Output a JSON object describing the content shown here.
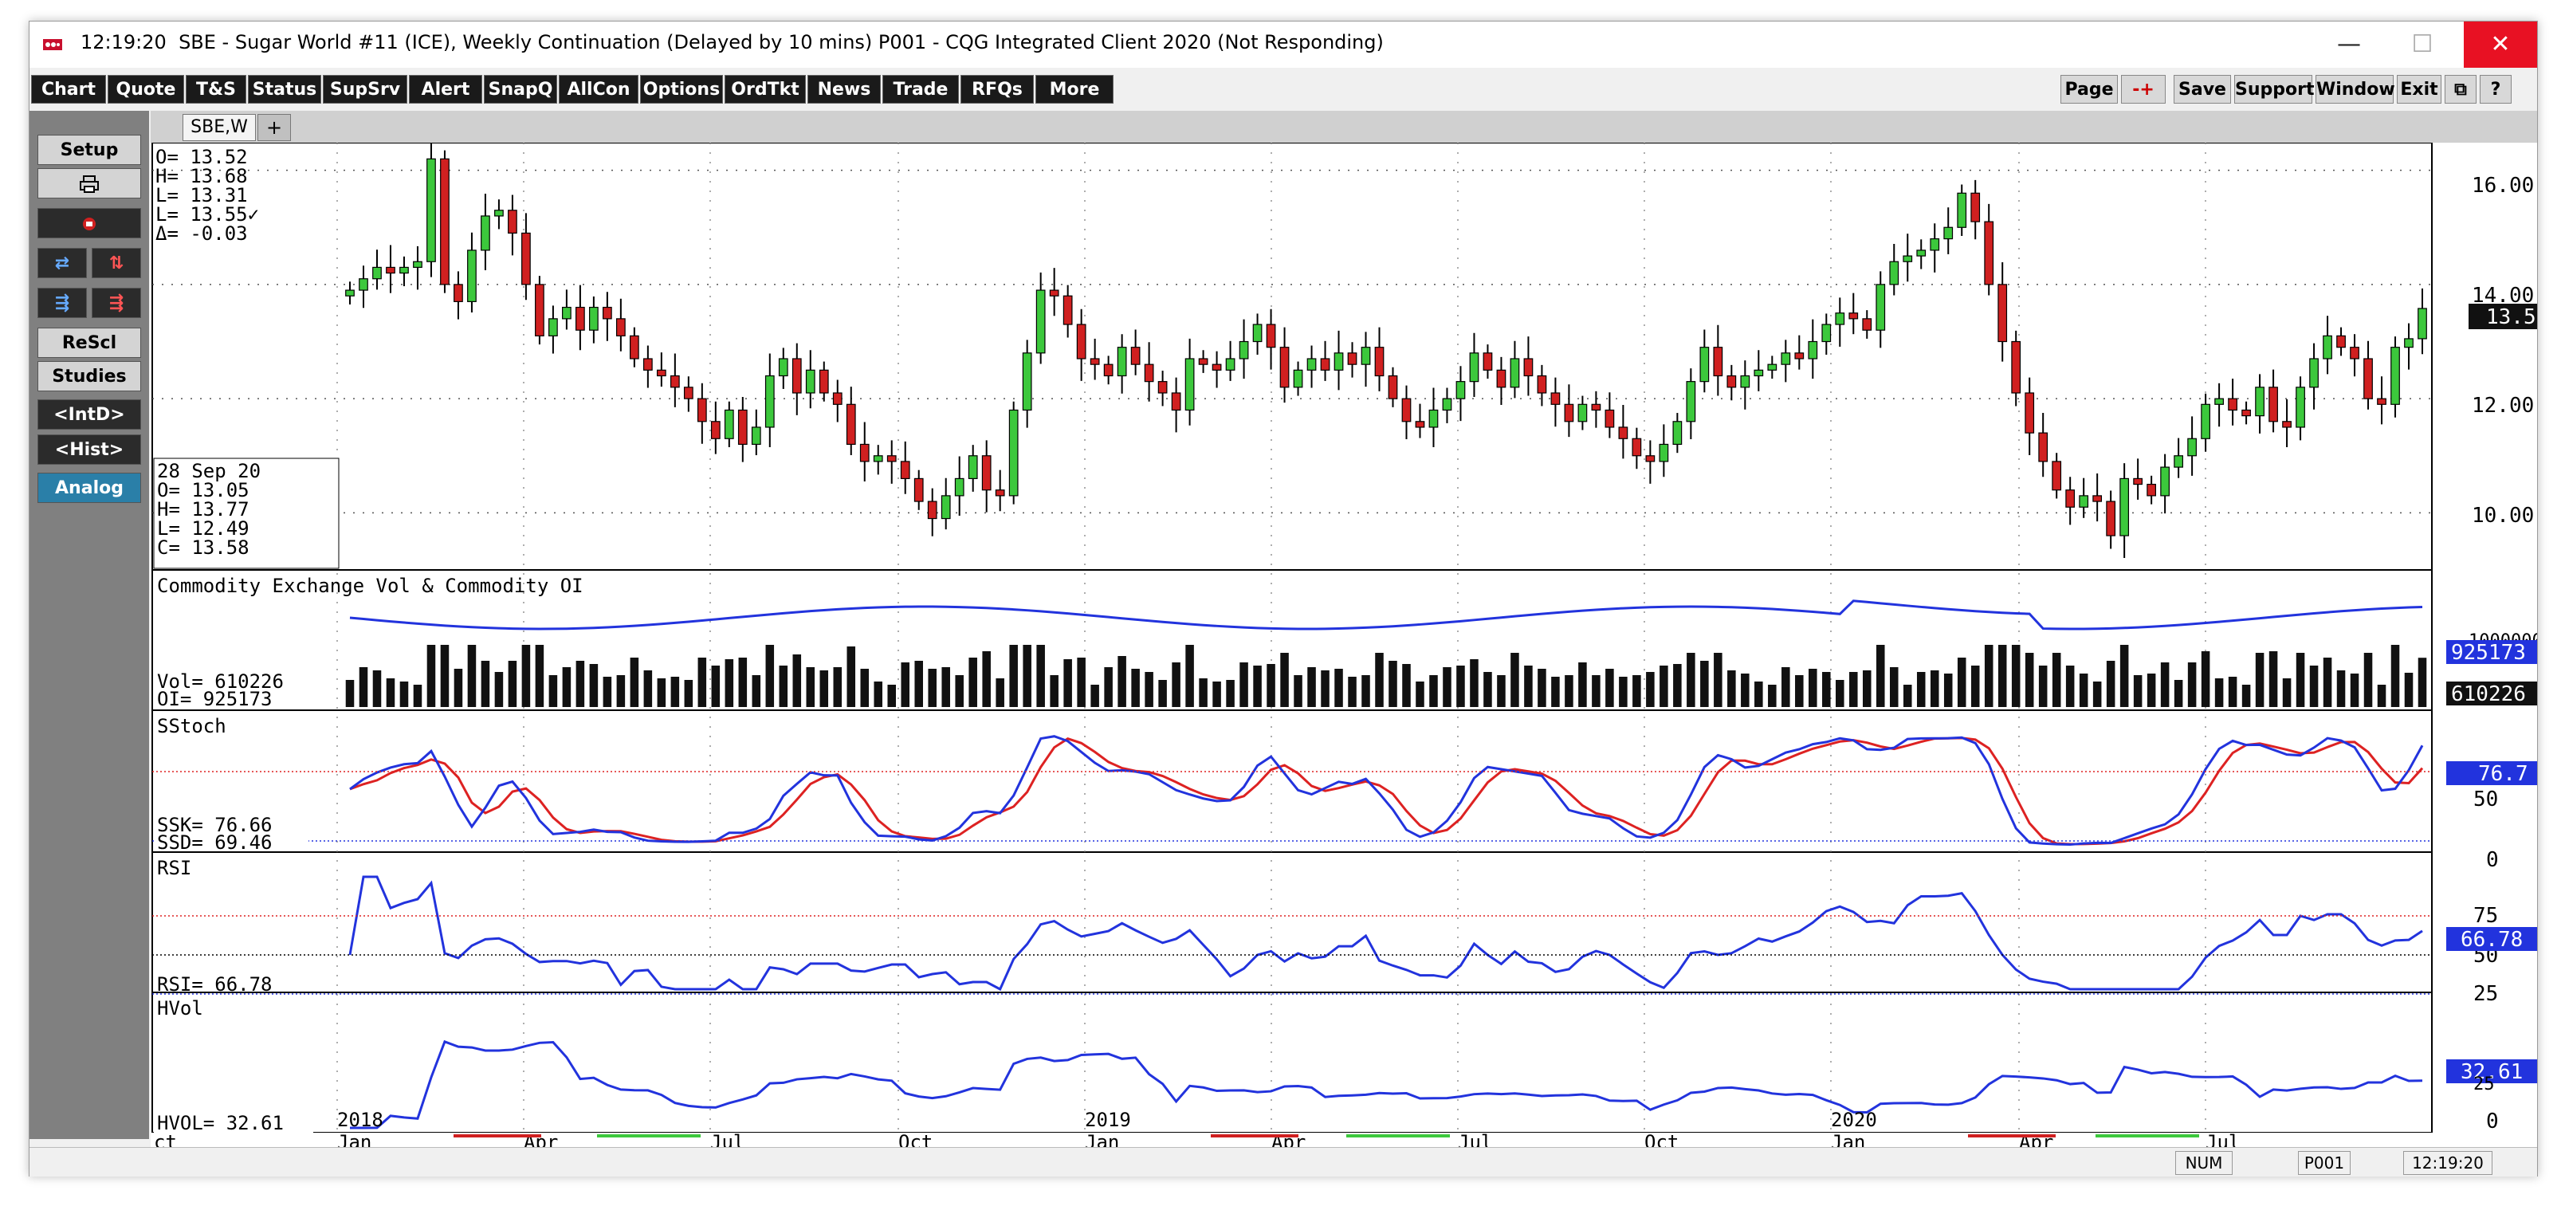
{
  "titlebar": {
    "time": "12:19:20",
    "title": "SBE - Sugar World #11 (ICE), Weekly Continuation (Delayed by 10 mins)   P001 - CQG Integrated Client 2020 (Not Responding)",
    "minimize": "—",
    "maximize": "☐",
    "close": "✕"
  },
  "toolbar": {
    "left": [
      "Chart",
      "Quote",
      "T&S",
      "Status",
      "SupSrv",
      "Alert",
      "SnapQ",
      "AllCon",
      "Options",
      "OrdTkt",
      "News",
      "Trade",
      "RFQs",
      "More"
    ],
    "right": [
      "Page",
      "-+",
      "Save",
      "Support",
      "Window",
      "Exit",
      "⧉",
      "?"
    ]
  },
  "leftpanel": {
    "setup": "Setup",
    "rescl": "ReScl",
    "studies": "Studies",
    "intd": "<IntD>",
    "hist": "<Hist>",
    "analog": "Analog"
  },
  "tabs": {
    "active": "SBE,W",
    "add": "+"
  },
  "ohlc_top": {
    "o": "O=   13.52",
    "h": "H=   13.68",
    "l1": "L=   13.31",
    "l2": "L=   13.55✓",
    "d": "Δ=   -0.03"
  },
  "ohlc_cursor": {
    "date": "28 Sep 20",
    "o": "O=   13.05",
    "h": "H=   13.77",
    "l": "L=   12.49",
    "c": "C=   13.58"
  },
  "panels": {
    "volume": {
      "title": "Commodity Exchange Vol & Commodity OI",
      "vol": "Vol=   610226",
      "oi": "OI=    925173",
      "oi_tag": "925173",
      "vol_tag": "610226",
      "axis": "1000000"
    },
    "stoch": {
      "title": "SStoch",
      "ssk": "SSK=   76.66",
      "ssd": "SSD=   69.46",
      "tag": "76.7",
      "axis": [
        "50",
        "0"
      ]
    },
    "rsi": {
      "title": "RSI",
      "val": "RSI=   66.78",
      "tag": "66.78",
      "axis": [
        "75",
        "50",
        "25"
      ]
    },
    "hvol": {
      "title": "HVol",
      "val": "HVOL=   32.61",
      "tag": "32.61",
      "axis": [
        "25",
        "0"
      ]
    }
  },
  "price_axis": [
    "16.00",
    "14.00",
    "12.00",
    "10.00"
  ],
  "last_price": "13.58",
  "colors": {
    "up": "#3cc83c",
    "down": "#d02020",
    "line": "#2233dd",
    "signal": "#dd2222"
  },
  "time_axis": {
    "months": [
      "ct",
      "Jan",
      "Apr",
      "Jul",
      "Oct",
      "Jan",
      "Apr",
      "Jul",
      "Oct",
      "Jan",
      "Apr",
      "Jul"
    ],
    "years": [
      "2018",
      "2019",
      "2020"
    ]
  },
  "statusbar": {
    "num": "NUM",
    "page": "P001",
    "time": "12:19:20"
  },
  "chart_data": {
    "type": "candlestick",
    "instrument": "SBE - Sugar World #11 (ICE)",
    "interval": "Weekly",
    "ylim": [
      9.0,
      16.4
    ],
    "period_start": "Oct 2017",
    "period_end": "Sep 2020",
    "closes": [
      13.9,
      14.1,
      14.3,
      14.2,
      14.3,
      14.4,
      16.2,
      14.0,
      13.7,
      14.6,
      15.2,
      15.3,
      14.9,
      14.0,
      13.1,
      13.4,
      13.6,
      13.2,
      13.6,
      13.4,
      13.1,
      12.7,
      12.5,
      12.4,
      12.2,
      12.0,
      11.6,
      11.3,
      11.8,
      11.2,
      11.5,
      12.4,
      12.7,
      12.1,
      12.5,
      12.1,
      11.9,
      11.2,
      10.9,
      11.0,
      10.9,
      10.6,
      10.2,
      9.9,
      10.3,
      10.6,
      11.0,
      10.4,
      10.3,
      11.8,
      12.8,
      13.9,
      13.8,
      13.3,
      12.7,
      12.6,
      12.4,
      12.9,
      12.6,
      12.3,
      12.1,
      11.8,
      12.7,
      12.6,
      12.5,
      12.7,
      13.0,
      13.3,
      12.9,
      12.2,
      12.5,
      12.7,
      12.5,
      12.8,
      12.6,
      12.9,
      12.4,
      12.0,
      11.6,
      11.5,
      11.8,
      12.0,
      12.3,
      12.8,
      12.5,
      12.2,
      12.7,
      12.4,
      12.1,
      11.9,
      11.6,
      11.9,
      11.8,
      11.5,
      11.3,
      11.0,
      10.9,
      11.2,
      11.6,
      12.3,
      12.9,
      12.4,
      12.2,
      12.4,
      12.5,
      12.6,
      12.8,
      12.7,
      13.0,
      13.3,
      13.5,
      13.4,
      13.2,
      14.0,
      14.4,
      14.5,
      14.6,
      14.8,
      15.0,
      15.6,
      15.1,
      14.0,
      13.0,
      12.1,
      11.4,
      10.9,
      10.4,
      10.1,
      10.3,
      10.2,
      9.6,
      10.6,
      10.5,
      10.3,
      10.8,
      11.0,
      11.3,
      11.9,
      12.0,
      11.8,
      11.7,
      12.2,
      11.6,
      11.5,
      12.2,
      12.7,
      13.1,
      12.9,
      12.7,
      12.0,
      11.9,
      12.9,
      13.05,
      13.58
    ]
  }
}
